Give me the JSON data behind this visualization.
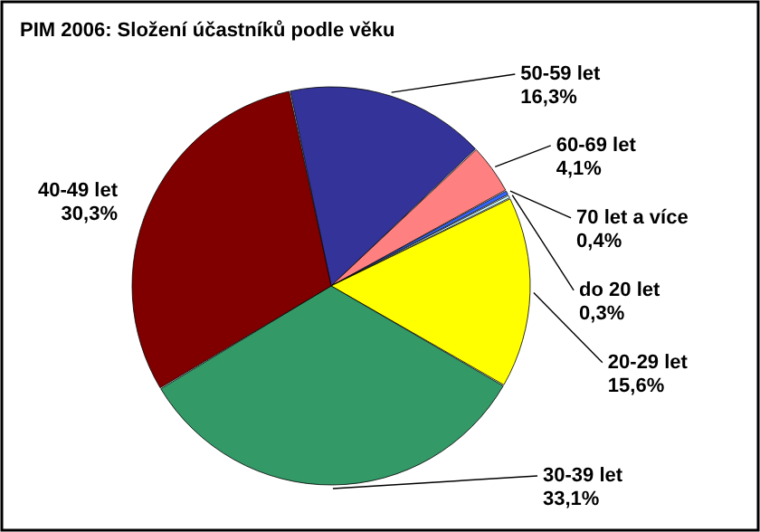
{
  "chart_data": {
    "type": "pie",
    "title": "PIM 2006: Složení účastníků podle věku",
    "categories": [
      "50-59 let",
      "60-69 let",
      "70 let a více",
      "do 20 let",
      "20-29 let",
      "30-39 let",
      "40-49 let"
    ],
    "values": [
      16.3,
      4.1,
      0.4,
      0.3,
      15.6,
      33.1,
      30.3
    ],
    "value_labels": [
      "16,3%",
      "4,1%",
      "0,4%",
      "0,3%",
      "15,6%",
      "33,1%",
      "30,3%"
    ],
    "colors": [
      "#333399",
      "#ff8080",
      "#3366ff",
      "#ccffff",
      "#ffff00",
      "#339966",
      "#800000"
    ]
  }
}
